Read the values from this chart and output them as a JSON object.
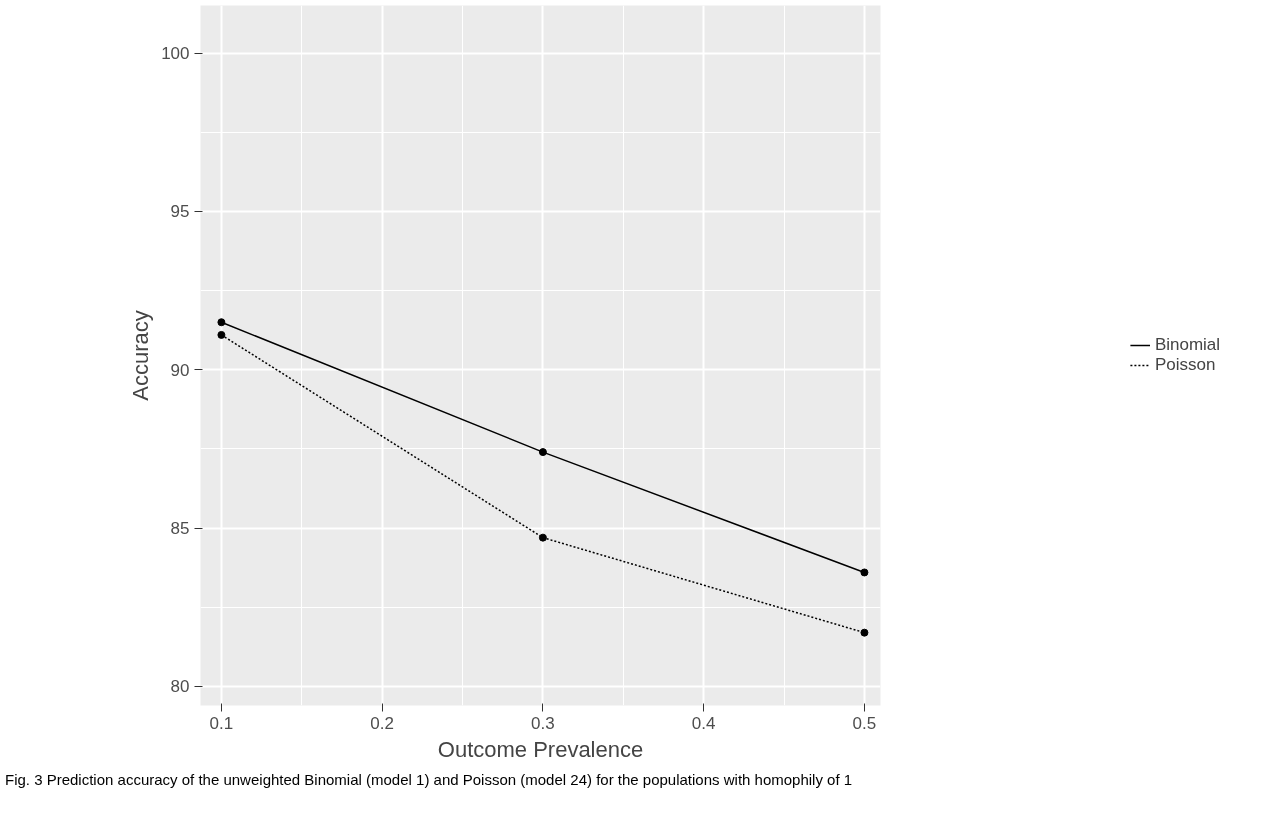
{
  "chart_data": {
    "type": "line",
    "xlabel": "Outcome Prevalence",
    "ylabel": "Accuracy",
    "x": [
      0.1,
      0.3,
      0.5
    ],
    "series": [
      {
        "name": "Binomial",
        "color": "#000000",
        "values": [
          91.5,
          87.4,
          83.6
        ],
        "line_style": "solid"
      },
      {
        "name": "Poisson",
        "color": "#000000",
        "values": [
          91.1,
          84.7,
          81.7
        ],
        "line_style": "dotted"
      }
    ],
    "xlim": [
      0.087,
      0.51
    ],
    "ylim": [
      79.4,
      101.5
    ],
    "xticks": [
      0.1,
      0.2,
      0.3,
      0.4,
      0.5
    ],
    "yticks": [
      80,
      85,
      90,
      95,
      100
    ],
    "grid": true,
    "legend": "right",
    "marker": "circle",
    "annotations": [
      "Fig. 3 Prediction accuracy of the unweighted Binomial (model 1) and Poisson (model 24) for the populations with homophily of 1"
    ]
  }
}
